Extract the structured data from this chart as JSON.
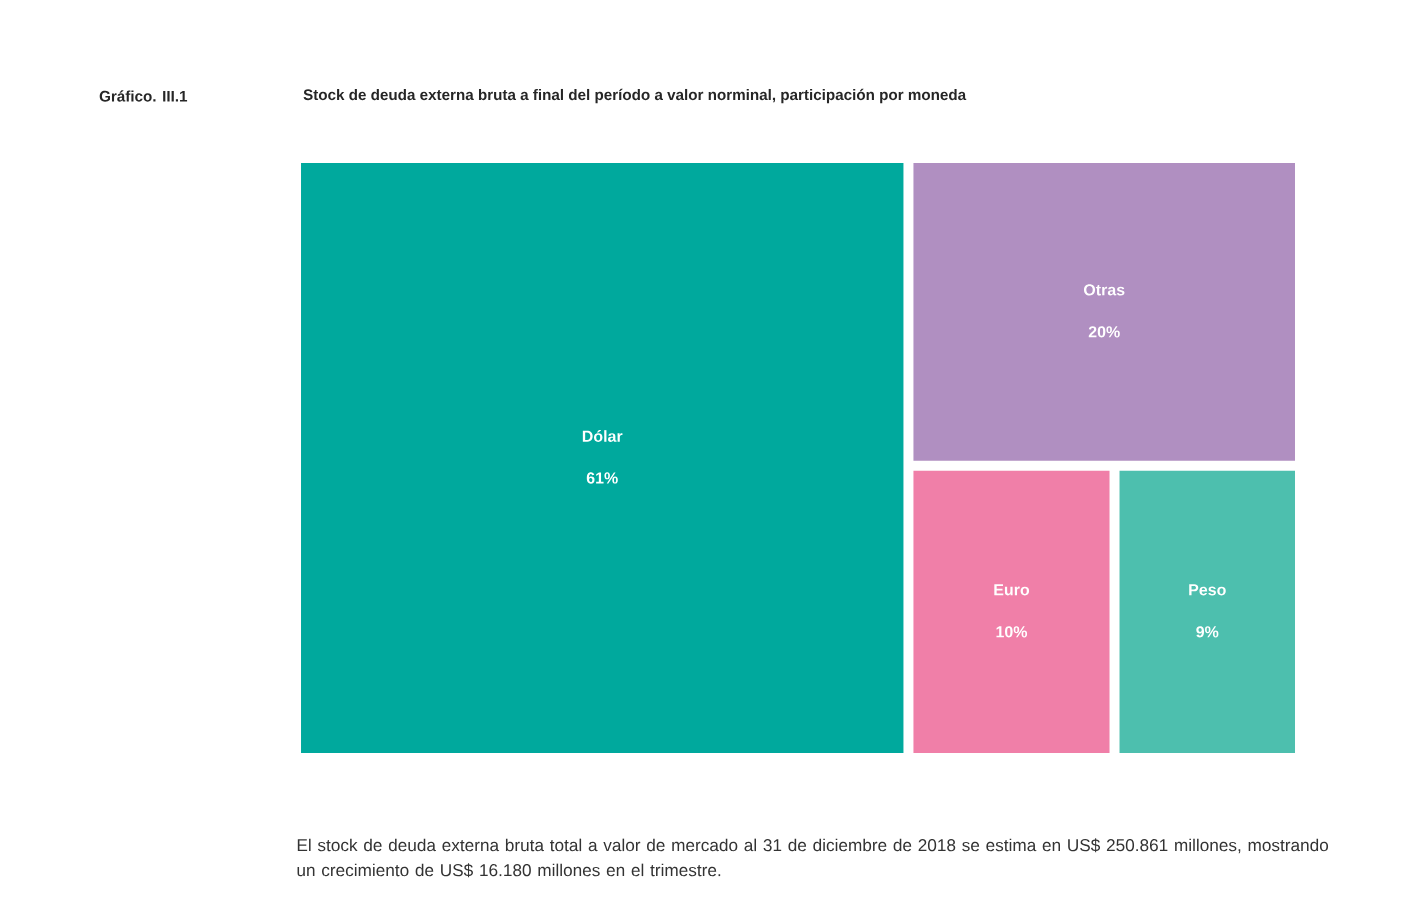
{
  "chart_data": {
    "type": "other",
    "title": "Stock de deuda externa bruta a final del período a valor norminal, participación por moneda",
    "categories": [
      "Dólar",
      "Otras",
      "Euro",
      "Peso"
    ],
    "values": [
      61,
      20,
      10,
      9
    ],
    "value_labels": [
      "61%",
      "20%",
      "10%",
      "9%"
    ],
    "colors": [
      "#00a99d",
      "#b08fc1",
      "#f07fa8",
      "#4dbfae"
    ],
    "annotations": [
      "Gráfico. III.1",
      "El stock de deuda externa bruta total a valor de mercado al 31 de diciembre de 2018 se estima en US$ 250.861 millones, mostrando un crecimiento de US$ 16.180 millones en el trimestre."
    ]
  }
}
